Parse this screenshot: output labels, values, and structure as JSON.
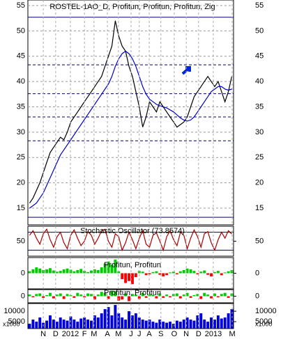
{
  "chart_data": [
    {
      "type": "line",
      "title": "ROSTEL-1AO_D, Profitun, Profitun, Profitun, Zig",
      "ylim": [
        11.7,
        56.1
      ],
      "yticks": [
        15,
        20,
        25,
        30,
        35,
        40,
        45,
        50,
        55
      ],
      "grid": true,
      "hlines": [
        52.7,
        43.3,
        37.6,
        33,
        28.3,
        13.2
      ],
      "series": [
        {
          "color": "#000000",
          "values": [
            16,
            17,
            18.5,
            20,
            22,
            24,
            26,
            27,
            28,
            29,
            28.5,
            30,
            32,
            33,
            34,
            35,
            36,
            37,
            38,
            39,
            40,
            41,
            43,
            45,
            47,
            52,
            49,
            47,
            46,
            43,
            41,
            38,
            35,
            31,
            33,
            36,
            35,
            34,
            36,
            35,
            34,
            33,
            32,
            31,
            31.5,
            32,
            33,
            35,
            37,
            38,
            39,
            40,
            41,
            40,
            39,
            40,
            38,
            36,
            38,
            41
          ]
        },
        {
          "color": "#0000cc",
          "values": [
            15,
            15.5,
            16,
            17,
            18,
            19.5,
            21,
            22.5,
            24,
            25.5,
            26.5,
            27.5,
            28.5,
            29.5,
            30.5,
            31.5,
            32.5,
            33.5,
            34.5,
            35.5,
            36.5,
            37.5,
            38.5,
            39.5,
            41,
            43,
            44.5,
            45.5,
            46,
            45.5,
            44.5,
            43,
            41,
            39,
            37.5,
            36.5,
            36,
            35.5,
            35.2,
            35,
            34.8,
            34.4,
            34,
            33.4,
            32.8,
            32.4,
            32.2,
            32.4,
            33,
            34,
            35,
            36,
            37,
            38,
            38.5,
            39,
            39,
            38.5,
            38.3,
            38.5
          ]
        }
      ]
    },
    {
      "type": "line",
      "title": "Stochastic Oscillator (73.8574)",
      "ylim": [
        0,
        100
      ],
      "yticks": [
        50
      ],
      "hlines": [
        80,
        20
      ],
      "series": [
        {
          "color": "#aa0000",
          "values": [
            70,
            85,
            60,
            40,
            75,
            90,
            55,
            30,
            65,
            80,
            45,
            25,
            70,
            88,
            60,
            35,
            50,
            82,
            70,
            40,
            60,
            85,
            90,
            50,
            30,
            75,
            65,
            20,
            45,
            80,
            55,
            25,
            60,
            85,
            40,
            30,
            70,
            78,
            50,
            20,
            65,
            85,
            55,
            35,
            80,
            70,
            25,
            60,
            88,
            65,
            30,
            75,
            82,
            45,
            20,
            55,
            80,
            60,
            85,
            74
          ]
        }
      ]
    },
    {
      "type": "bar",
      "title": "Profitun, Profitun",
      "ylim": [
        -4,
        4
      ],
      "yticks": [
        0
      ],
      "pos_color": "#00cc00",
      "neg_color": "#ff0000",
      "values": [
        0.5,
        1,
        1.5,
        1.2,
        0.8,
        1,
        1.3,
        0.7,
        0.4,
        0.6,
        1,
        1.2,
        0.9,
        0.5,
        0.8,
        1.1,
        0.6,
        0.3,
        0.7,
        1,
        0.8,
        1.5,
        2.5,
        3,
        2.2,
        3.5,
        0.5,
        -1.5,
        -2.5,
        -2,
        -2.8,
        -1,
        0.6,
        0.4,
        -0.5,
        -0.3,
        0.3,
        0.5,
        -0.4,
        -0.8,
        -0.5,
        0.2,
        0.4,
        -0.3,
        0.5,
        0.8,
        1.2,
        1,
        0.6,
        -0.3,
        0.4,
        0.7,
        -0.4,
        -0.8,
        0.3,
        0.6,
        -0.5,
        0.2,
        0.5,
        0.8
      ]
    },
    {
      "type": "bar",
      "title": "Profitun, Profitun",
      "ylim": [
        -1.2,
        1.2
      ],
      "yticks": [
        0
      ],
      "pos_color": "#00cc00",
      "neg_color": "#ff0000",
      "values": [
        0.3,
        -0.2,
        0.4,
        0.5,
        -0.3,
        0.2,
        0.6,
        -0.4,
        0.3,
        0.5,
        -0.5,
        0.4,
        0.2,
        -0.3,
        0.6,
        0.3,
        -0.2,
        0.5,
        0.4,
        -0.6,
        0.3,
        0.8,
        0.6,
        -0.5,
        1,
        0.9,
        -0.8,
        -0.6,
        0.5,
        -0.9,
        0.4,
        0.3,
        -0.5,
        0.6,
        -0.3,
        0.4,
        0.2,
        -0.4,
        0.5,
        -0.3,
        0.3,
        -0.2,
        0.4,
        0.5,
        -0.4,
        0.3,
        0.6,
        -0.3,
        0.2,
        0.4,
        -0.5,
        0.6,
        0.3,
        -0.4,
        0.5,
        -0.2,
        0.4,
        0.6,
        -0.3,
        0.5
      ]
    },
    {
      "type": "bar",
      "unit_label": "x1000",
      "ylim": [
        1700,
        13700
      ],
      "yticks": [
        10000,
        5000
      ],
      "color": "#0000dd",
      "values": [
        4000,
        6000,
        5000,
        7000,
        4500,
        5500,
        8000,
        6000,
        5000,
        7000,
        6000,
        5500,
        7500,
        6000,
        5000,
        6500,
        7000,
        6000,
        5500,
        8000,
        7000,
        9000,
        11000,
        12000,
        8000,
        13000,
        9000,
        7000,
        6000,
        10000,
        8000,
        9000,
        7000,
        6000,
        5500,
        6000,
        5000,
        4500,
        6000,
        5000,
        4500,
        5000,
        4000,
        5500,
        5000,
        6000,
        7000,
        6000,
        5500,
        8000,
        9000,
        6000,
        5000,
        7000,
        6000,
        8000,
        6500,
        7000,
        9000,
        11000
      ],
      "xticks": [
        {
          "value": 4,
          "label": "N"
        },
        {
          "value": 7.6,
          "label": "D"
        },
        {
          "value": 11.9,
          "label": "2012"
        },
        {
          "value": 16,
          "label": "F"
        },
        {
          "value": 18.8,
          "label": "M"
        },
        {
          "value": 22.7,
          "label": "A"
        },
        {
          "value": 25.9,
          "label": "M"
        },
        {
          "value": 29.6,
          "label": "J"
        },
        {
          "value": 32,
          "label": "J"
        },
        {
          "value": 34.9,
          "label": "A"
        },
        {
          "value": 38.3,
          "label": "S"
        },
        {
          "value": 42.2,
          "label": "O"
        },
        {
          "value": 45.7,
          "label": "N"
        },
        {
          "value": 49.3,
          "label": "D"
        },
        {
          "value": 53.6,
          "label": "2013"
        },
        {
          "value": 59.1,
          "label": "M"
        }
      ]
    }
  ]
}
